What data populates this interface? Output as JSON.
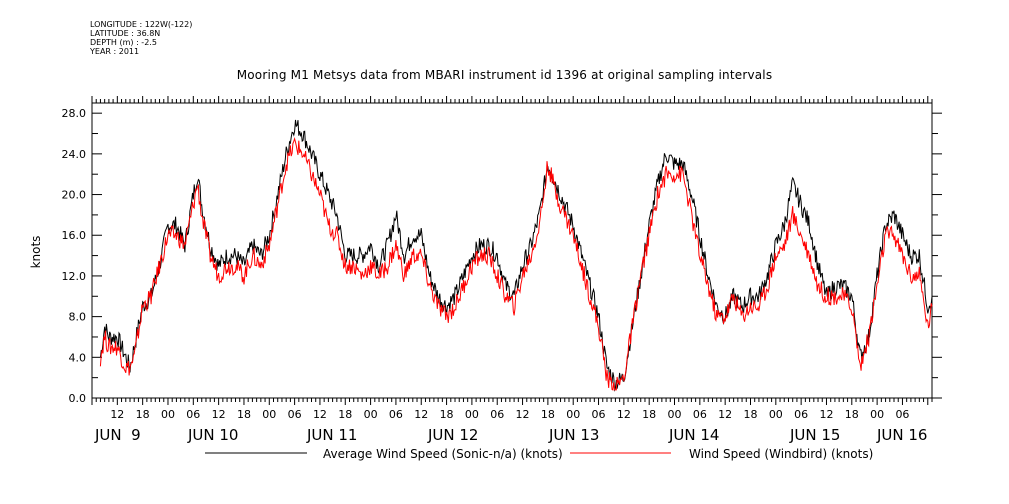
{
  "header": {
    "longitude": "LONGITUDE : 122W(-122)",
    "latitude": "LATITUDE : 36.8N",
    "depth": "DEPTH (m) : -2.5",
    "year": "YEAR : 2011"
  },
  "chart_data": {
    "type": "line",
    "title": "Mooring M1 Metsys data from MBARI instrument id 1396 at original sampling intervals",
    "ylabel": "knots",
    "ylim": [
      0,
      29
    ],
    "yticks": [
      0.0,
      4.0,
      8.0,
      12.0,
      16.0,
      20.0,
      24.0,
      28.0
    ],
    "ytick_labels": [
      "0.0",
      "4.0",
      "8.0",
      "12.0",
      "16.0",
      "20.0",
      "24.0",
      "28.0"
    ],
    "xlim_hours": [
      6,
      205
    ],
    "hour_tick_labels": [
      "12",
      "18",
      "00",
      "06",
      "12",
      "18",
      "00",
      "06",
      "12",
      "18",
      "00",
      "06",
      "12",
      "18",
      "00",
      "06",
      "12",
      "18",
      "00",
      "06",
      "12",
      "18",
      "00",
      "06",
      "12",
      "18",
      "00",
      "06",
      "12",
      "18",
      "00",
      "06"
    ],
    "day_labels": [
      "JUN  9",
      "JUN 10",
      "JUN 11",
      "JUN 12",
      "JUN 13",
      "JUN 14",
      "JUN 15",
      "JUN 16"
    ],
    "grid": false,
    "legend_position": "bottom",
    "series": [
      {
        "name": "Average Wind Speed (Sonic-n/a) (knots)",
        "color": "#000000",
        "points": [
          [
            8,
            4
          ],
          [
            9,
            7
          ],
          [
            10,
            6
          ],
          [
            12,
            6
          ],
          [
            14,
            4
          ],
          [
            15,
            3
          ],
          [
            16,
            5
          ],
          [
            18,
            9
          ],
          [
            20,
            10
          ],
          [
            22,
            13
          ],
          [
            24,
            17
          ],
          [
            26,
            17
          ],
          [
            28,
            15
          ],
          [
            30,
            20
          ],
          [
            31,
            22
          ],
          [
            32,
            19
          ],
          [
            34,
            15
          ],
          [
            36,
            13
          ],
          [
            38,
            14
          ],
          [
            40,
            14
          ],
          [
            42,
            13
          ],
          [
            44,
            15
          ],
          [
            46,
            14
          ],
          [
            48,
            16
          ],
          [
            50,
            20
          ],
          [
            52,
            24
          ],
          [
            54,
            27
          ],
          [
            56,
            26
          ],
          [
            58,
            24
          ],
          [
            60,
            22
          ],
          [
            62,
            20
          ],
          [
            64,
            18
          ],
          [
            66,
            14
          ],
          [
            68,
            14
          ],
          [
            70,
            14
          ],
          [
            72,
            15
          ],
          [
            74,
            13
          ],
          [
            76,
            15
          ],
          [
            78,
            18
          ],
          [
            80,
            14
          ],
          [
            82,
            16
          ],
          [
            84,
            16
          ],
          [
            86,
            12
          ],
          [
            88,
            10
          ],
          [
            90,
            9
          ],
          [
            92,
            10
          ],
          [
            94,
            12
          ],
          [
            96,
            14
          ],
          [
            98,
            15
          ],
          [
            100,
            15
          ],
          [
            102,
            14
          ],
          [
            104,
            11
          ],
          [
            106,
            10
          ],
          [
            108,
            13
          ],
          [
            110,
            15
          ],
          [
            112,
            18
          ],
          [
            114,
            23
          ],
          [
            116,
            21
          ],
          [
            118,
            19
          ],
          [
            120,
            17
          ],
          [
            122,
            14
          ],
          [
            124,
            11
          ],
          [
            126,
            8
          ],
          [
            128,
            3
          ],
          [
            130,
            1.5
          ],
          [
            132,
            2
          ],
          [
            134,
            7
          ],
          [
            136,
            12
          ],
          [
            138,
            17
          ],
          [
            140,
            21
          ],
          [
            142,
            24
          ],
          [
            144,
            23
          ],
          [
            146,
            23
          ],
          [
            148,
            20
          ],
          [
            150,
            16
          ],
          [
            152,
            12
          ],
          [
            154,
            9
          ],
          [
            156,
            8
          ],
          [
            158,
            10
          ],
          [
            160,
            9
          ],
          [
            162,
            10
          ],
          [
            164,
            10
          ],
          [
            166,
            12
          ],
          [
            168,
            15
          ],
          [
            170,
            17
          ],
          [
            172,
            21
          ],
          [
            174,
            19
          ],
          [
            176,
            17
          ],
          [
            178,
            13
          ],
          [
            180,
            10
          ],
          [
            182,
            11
          ],
          [
            184,
            11
          ],
          [
            186,
            10
          ],
          [
            188,
            4
          ],
          [
            190,
            6
          ],
          [
            192,
            12
          ],
          [
            194,
            17
          ],
          [
            196,
            18
          ],
          [
            198,
            16
          ],
          [
            200,
            14
          ],
          [
            202,
            14
          ],
          [
            204,
            9
          ],
          [
            205,
            10
          ]
        ]
      },
      {
        "name": "Wind Speed (Windbird) (knots)",
        "color": "#ff0000",
        "points": [
          [
            8,
            4
          ],
          [
            9,
            6
          ],
          [
            10,
            5
          ],
          [
            12,
            5
          ],
          [
            14,
            3
          ],
          [
            15,
            3
          ],
          [
            16,
            4
          ],
          [
            18,
            9
          ],
          [
            20,
            10
          ],
          [
            22,
            13
          ],
          [
            24,
            16
          ],
          [
            26,
            16
          ],
          [
            28,
            15
          ],
          [
            30,
            19
          ],
          [
            31,
            21
          ],
          [
            32,
            18
          ],
          [
            34,
            14
          ],
          [
            36,
            12
          ],
          [
            38,
            13
          ],
          [
            40,
            13
          ],
          [
            42,
            12
          ],
          [
            44,
            14
          ],
          [
            46,
            13
          ],
          [
            48,
            15
          ],
          [
            50,
            19
          ],
          [
            52,
            23
          ],
          [
            54,
            25
          ],
          [
            56,
            24
          ],
          [
            58,
            22
          ],
          [
            60,
            20
          ],
          [
            62,
            17
          ],
          [
            64,
            16
          ],
          [
            66,
            13
          ],
          [
            68,
            13
          ],
          [
            70,
            12
          ],
          [
            72,
            13
          ],
          [
            74,
            12
          ],
          [
            76,
            13
          ],
          [
            78,
            15
          ],
          [
            80,
            12
          ],
          [
            82,
            14
          ],
          [
            84,
            14
          ],
          [
            86,
            11
          ],
          [
            88,
            9
          ],
          [
            90,
            8
          ],
          [
            92,
            9
          ],
          [
            94,
            11
          ],
          [
            96,
            13
          ],
          [
            98,
            14
          ],
          [
            100,
            14
          ],
          [
            102,
            12
          ],
          [
            104,
            10
          ],
          [
            106,
            9
          ],
          [
            108,
            12
          ],
          [
            110,
            14
          ],
          [
            112,
            17
          ],
          [
            114,
            23
          ],
          [
            116,
            20
          ],
          [
            118,
            18
          ],
          [
            120,
            16
          ],
          [
            122,
            13
          ],
          [
            124,
            10
          ],
          [
            126,
            7
          ],
          [
            128,
            2
          ],
          [
            130,
            1
          ],
          [
            132,
            2
          ],
          [
            134,
            7
          ],
          [
            136,
            12
          ],
          [
            138,
            16
          ],
          [
            140,
            20
          ],
          [
            142,
            22
          ],
          [
            144,
            22
          ],
          [
            146,
            22
          ],
          [
            148,
            18
          ],
          [
            150,
            14
          ],
          [
            152,
            11
          ],
          [
            154,
            8
          ],
          [
            156,
            8
          ],
          [
            158,
            10
          ],
          [
            160,
            8
          ],
          [
            162,
            9
          ],
          [
            164,
            9
          ],
          [
            166,
            11
          ],
          [
            168,
            14
          ],
          [
            170,
            15
          ],
          [
            172,
            18
          ],
          [
            174,
            16
          ],
          [
            176,
            14
          ],
          [
            178,
            11
          ],
          [
            180,
            10
          ],
          [
            182,
            10
          ],
          [
            184,
            10
          ],
          [
            186,
            9
          ],
          [
            188,
            3
          ],
          [
            190,
            6
          ],
          [
            192,
            11
          ],
          [
            194,
            16
          ],
          [
            196,
            16
          ],
          [
            198,
            14
          ],
          [
            200,
            12
          ],
          [
            202,
            12
          ],
          [
            204,
            7
          ],
          [
            205,
            9
          ]
        ]
      }
    ]
  }
}
